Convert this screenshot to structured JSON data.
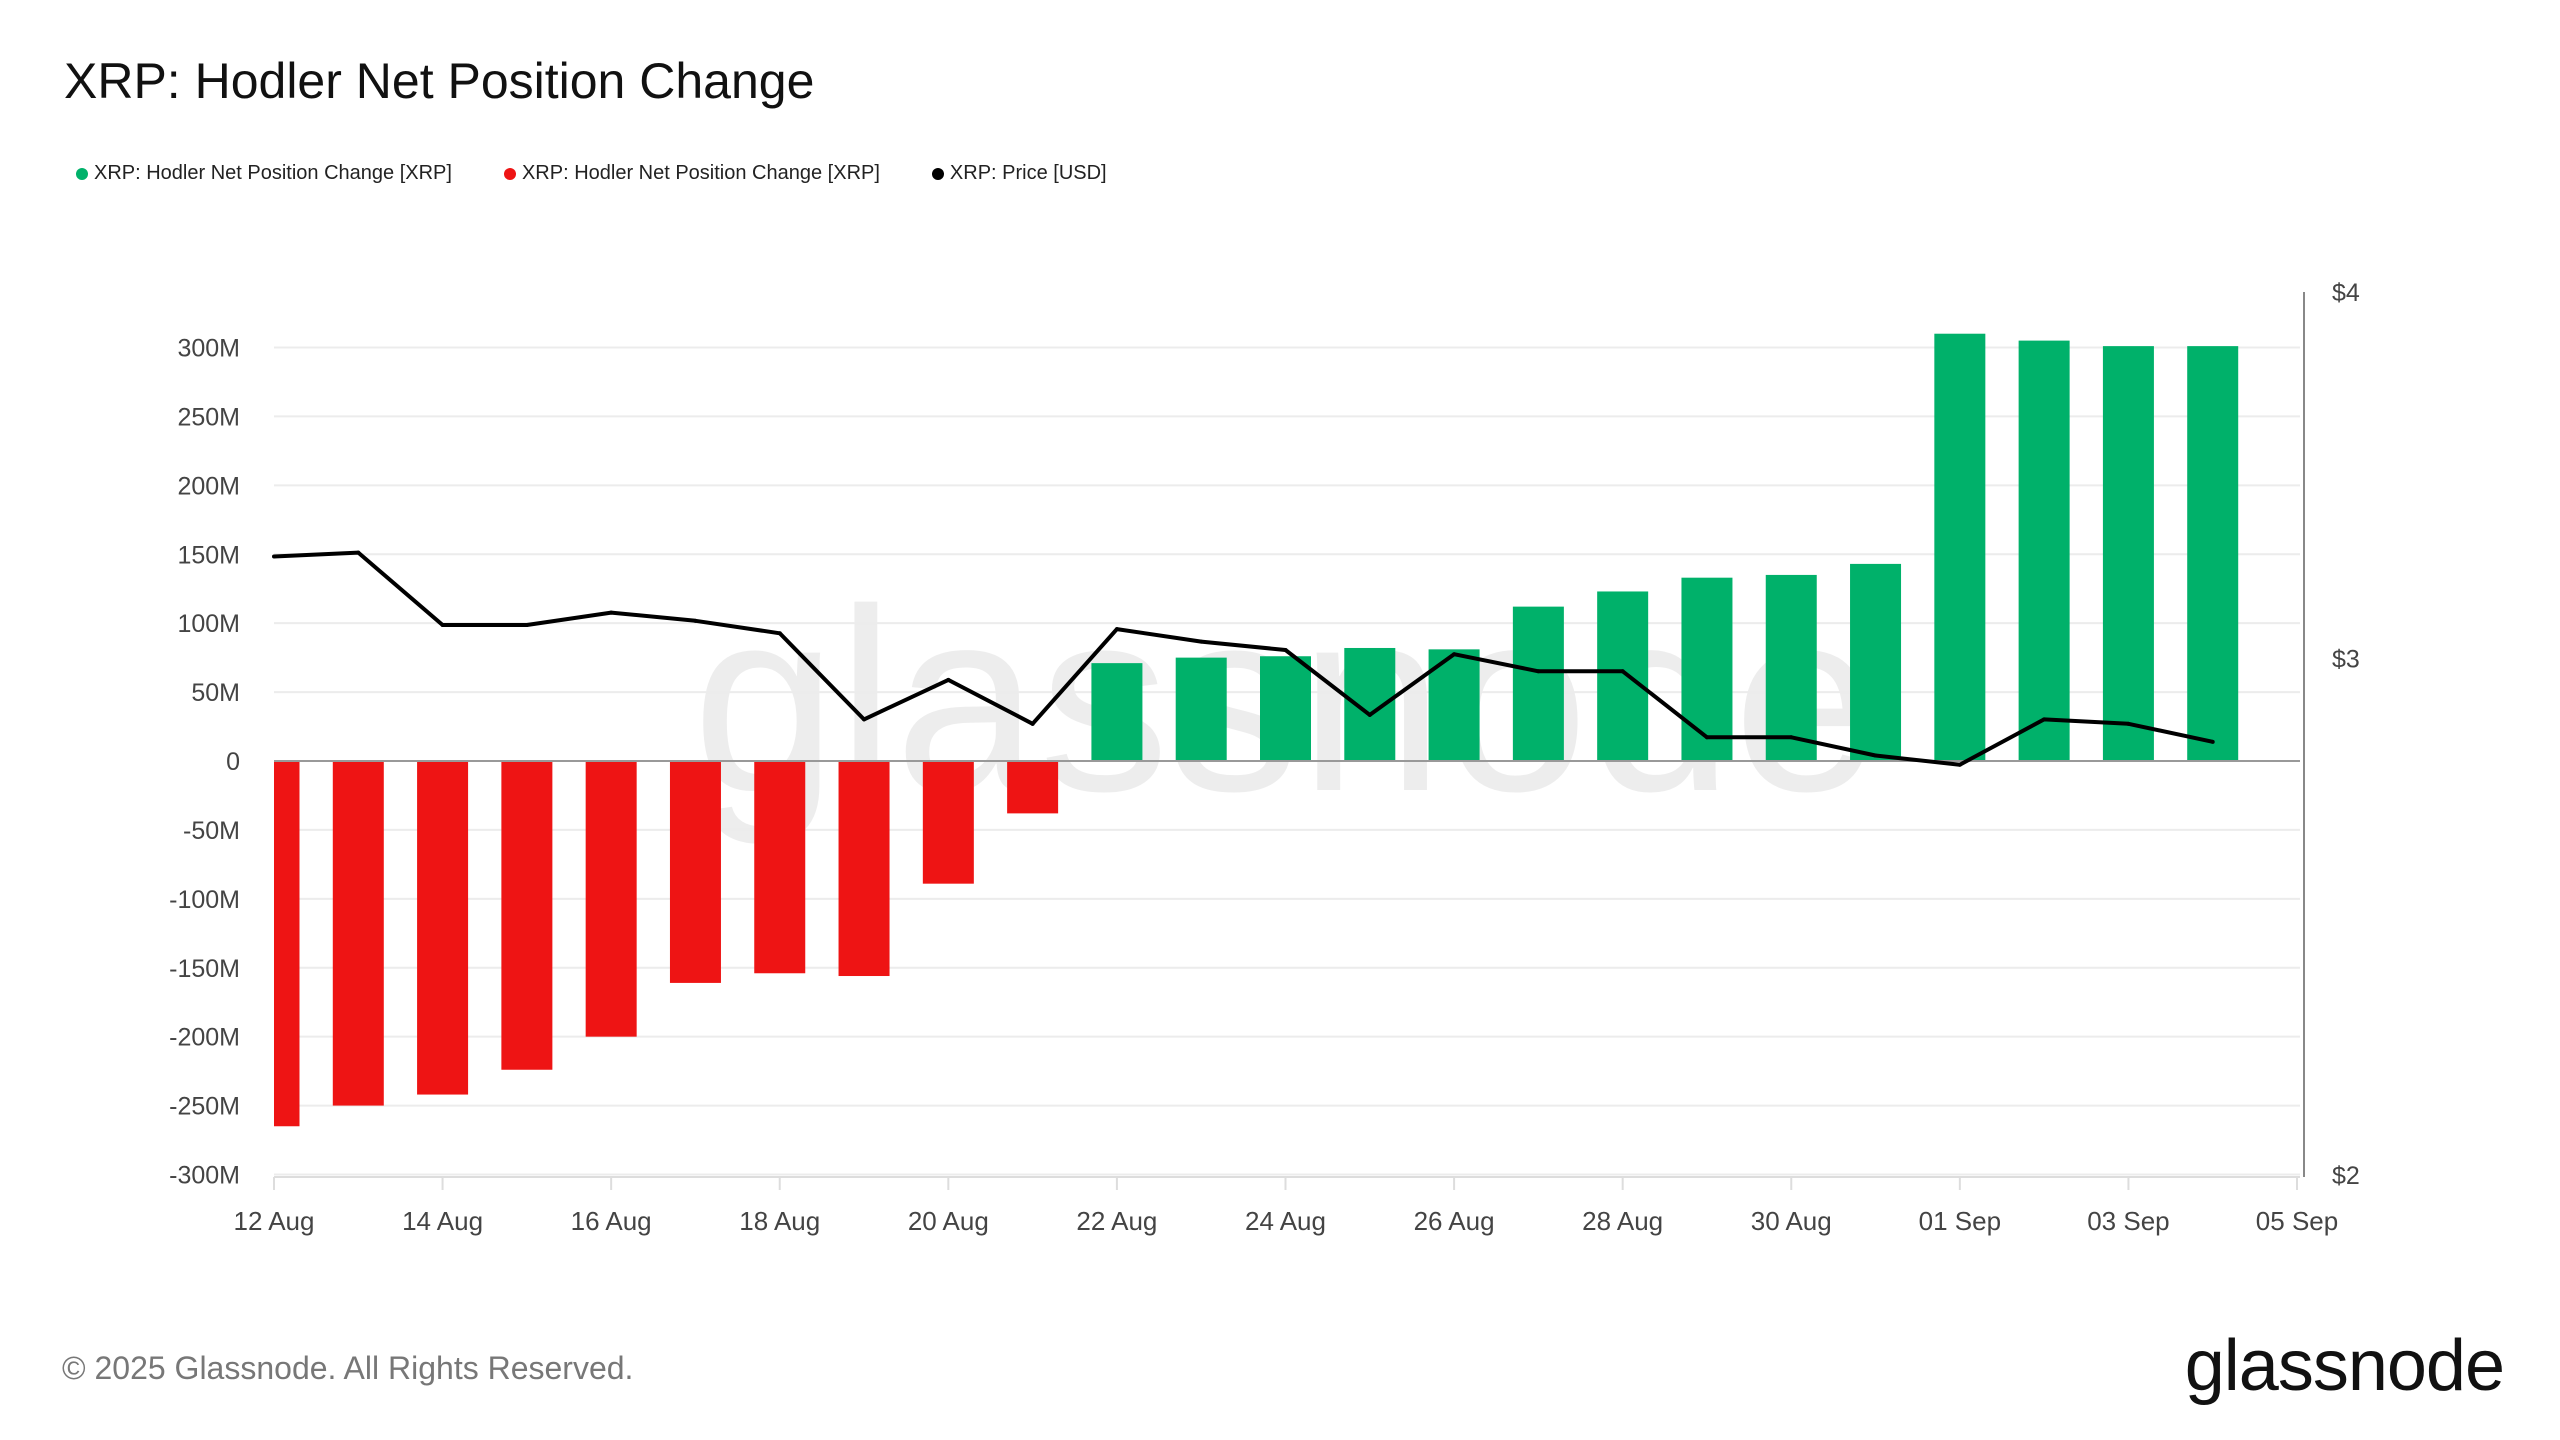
{
  "title": "XRP: Hodler Net Position Change",
  "legend": [
    {
      "label": "XRP: Hodler Net Position Change [XRP]",
      "color": "#00b16a"
    },
    {
      "label": "XRP: Hodler Net Position Change [XRP]",
      "color": "#ee1414"
    },
    {
      "label": "XRP: Price [USD]",
      "color": "#000000"
    }
  ],
  "footer": "© 2025 Glassnode. All Rights Reserved.",
  "logo": "glassnode",
  "watermark": "glassnode",
  "chart_data": {
    "type": "bar",
    "title": "XRP: Hodler Net Position Change",
    "categories": [
      "12 Aug",
      "13 Aug",
      "14 Aug",
      "15 Aug",
      "16 Aug",
      "17 Aug",
      "18 Aug",
      "19 Aug",
      "20 Aug",
      "21 Aug",
      "22 Aug",
      "23 Aug",
      "24 Aug",
      "25 Aug",
      "26 Aug",
      "27 Aug",
      "28 Aug",
      "29 Aug",
      "30 Aug",
      "31 Aug",
      "01 Sep",
      "02 Sep",
      "03 Sep",
      "04 Sep"
    ],
    "x_ticks": [
      "12 Aug",
      "14 Aug",
      "16 Aug",
      "18 Aug",
      "20 Aug",
      "22 Aug",
      "24 Aug",
      "26 Aug",
      "28 Aug",
      "30 Aug",
      "01 Sep",
      "03 Sep",
      "05 Sep"
    ],
    "series": [
      {
        "name": "XRP: Hodler Net Position Change [XRP]",
        "type": "bar",
        "axis": "left",
        "unit": "M XRP",
        "positive_color": "#00b16a",
        "negative_color": "#ee1414",
        "values": [
          -265,
          -250,
          -242,
          -224,
          -200,
          -161,
          -154,
          -156,
          -89,
          -38,
          71,
          75,
          76,
          82,
          81,
          112,
          123,
          133,
          135,
          143,
          310,
          305,
          301,
          301
        ]
      },
      {
        "name": "XRP: Price [USD]",
        "type": "line",
        "axis": "right",
        "color": "#000000",
        "values": [
          3.25,
          3.26,
          3.08,
          3.08,
          3.11,
          3.09,
          3.06,
          2.86,
          2.95,
          2.85,
          3.07,
          3.04,
          3.02,
          2.87,
          3.01,
          2.97,
          2.97,
          2.82,
          2.82,
          2.78,
          2.76,
          2.86,
          2.85,
          2.81
        ]
      }
    ],
    "y_left": {
      "ylim": [
        -300,
        300
      ],
      "ticks": [
        "300M",
        "250M",
        "200M",
        "150M",
        "100M",
        "50M",
        "0",
        "-50M",
        "-100M",
        "-150M",
        "-200M",
        "-250M",
        "-300M"
      ],
      "tick_values": [
        300,
        250,
        200,
        150,
        100,
        50,
        0,
        -50,
        -100,
        -150,
        -200,
        -250,
        -300
      ]
    },
    "y_right": {
      "scale": "log",
      "ylim": [
        2,
        4
      ],
      "ticks": [
        "$4",
        "$3",
        "$2"
      ],
      "tick_values": [
        4,
        3,
        2
      ]
    },
    "grid": true,
    "legend_position": "top-left"
  }
}
